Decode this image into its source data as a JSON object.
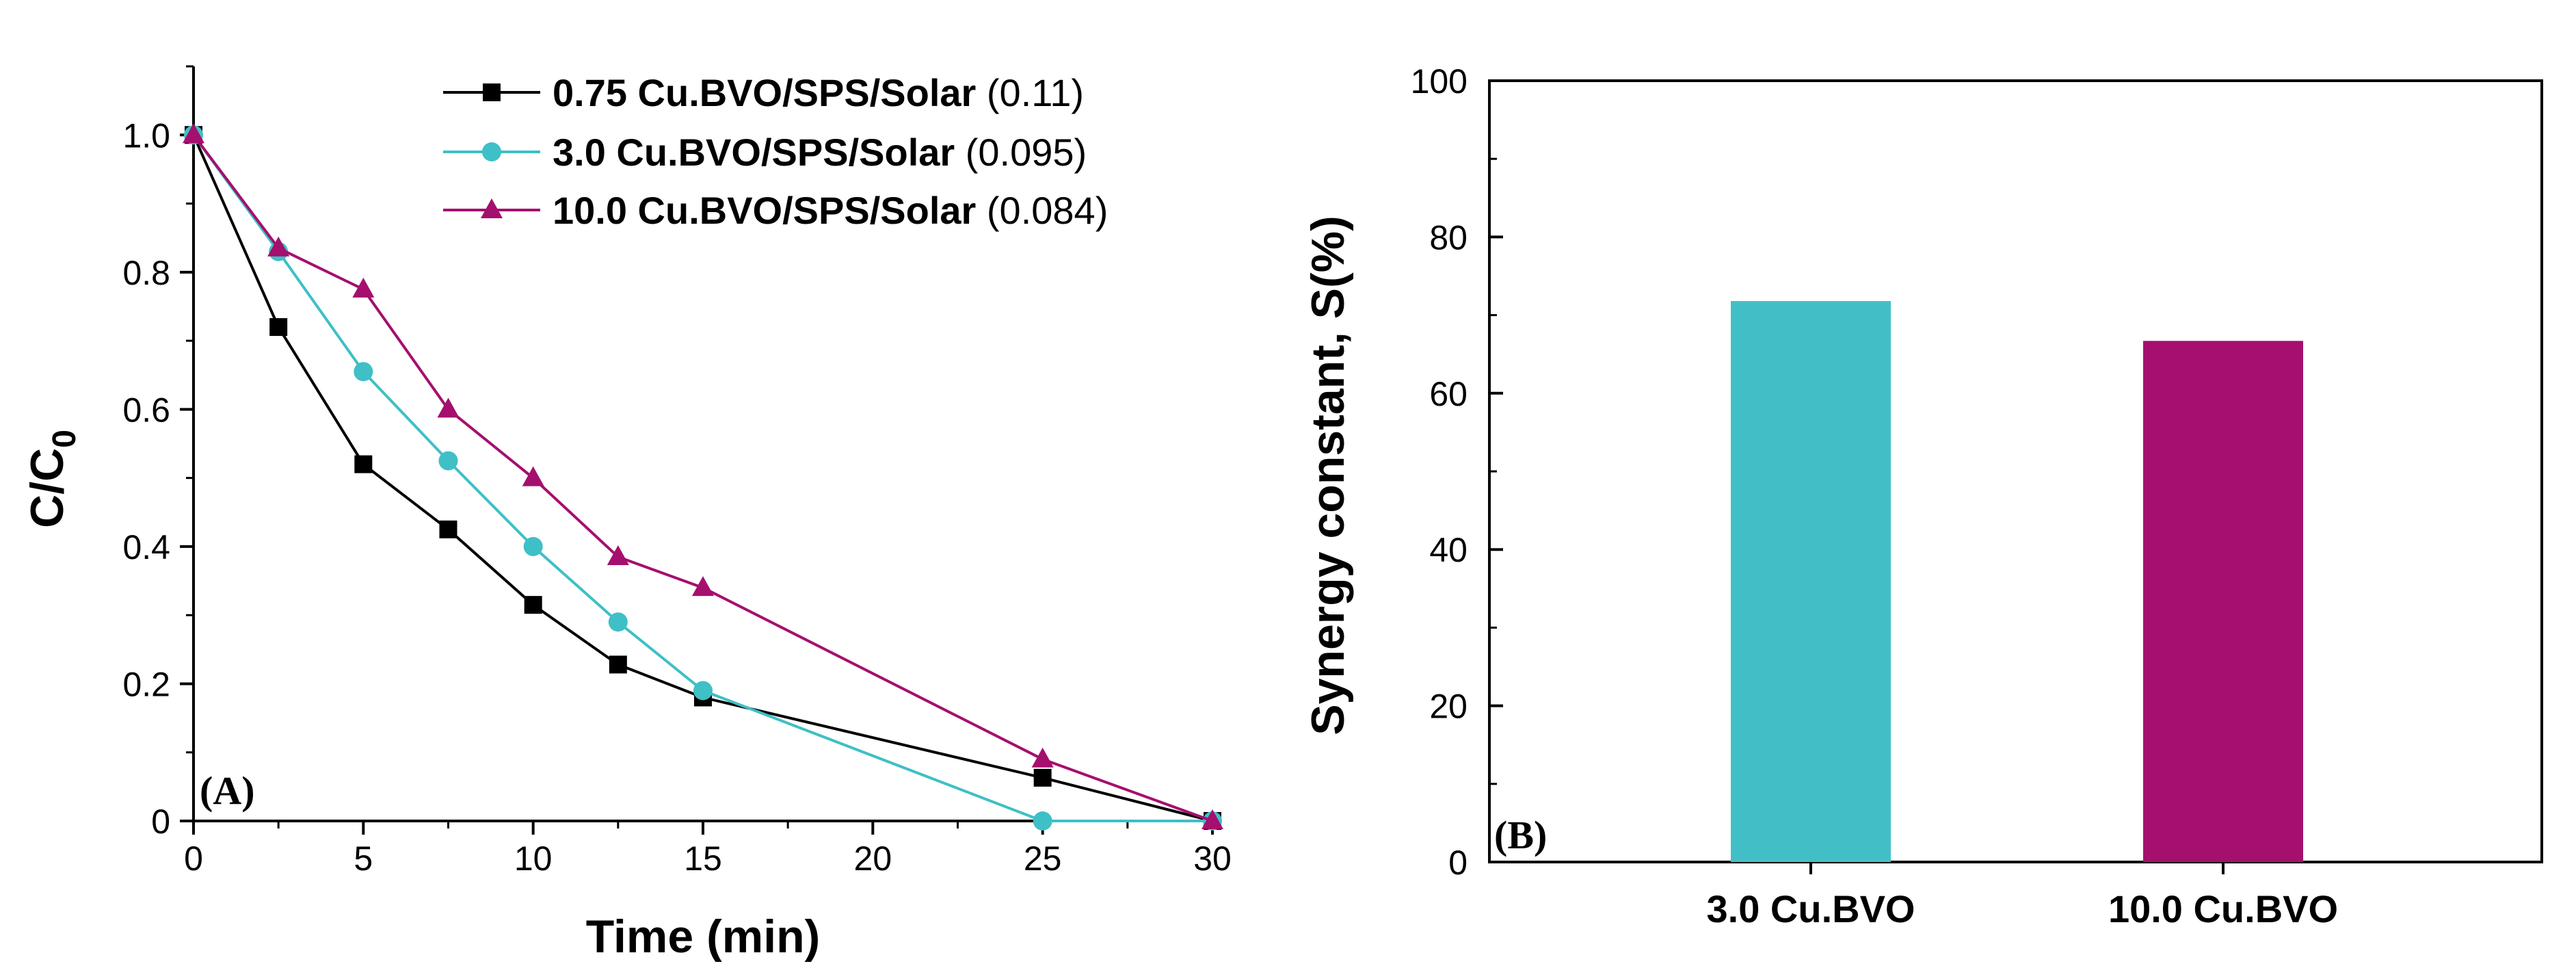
{
  "chart_data": [
    {
      "type": "line",
      "panel_label": "(A)",
      "xlabel": "Time (min)",
      "ylabel": {
        "main": "C/C",
        "subscript": "0"
      },
      "xlim": [
        0,
        30
      ],
      "ylim": [
        0,
        1.1
      ],
      "x_ticks": [
        "0",
        "5",
        "10",
        "15",
        "20",
        "25",
        "30"
      ],
      "y_ticks": [
        "0",
        "0.2",
        "0.4",
        "0.6",
        "0.8",
        "1.0"
      ],
      "grid": false,
      "legend_position": "top-right",
      "series": [
        {
          "name": "0.75 Cu.BVO/SPS/Solar",
          "rate_constant": "(0.11)",
          "marker": "square",
          "color": "#000000",
          "x": [
            0,
            2.5,
            5,
            7.5,
            10,
            12.5,
            15,
            25,
            30
          ],
          "y": [
            1.0,
            0.72,
            0.52,
            0.425,
            0.315,
            0.228,
            0.18,
            0.063,
            0.0
          ]
        },
        {
          "name": "3.0 Cu.BVO/SPS/Solar",
          "rate_constant": "(0.095)",
          "marker": "circle",
          "color": "#3fbfc6",
          "x": [
            0,
            2.5,
            5,
            7.5,
            10,
            12.5,
            15,
            25,
            30
          ],
          "y": [
            1.0,
            0.83,
            0.655,
            0.525,
            0.4,
            0.29,
            0.19,
            0.0,
            0.0
          ]
        },
        {
          "name": "10.0 Cu.BVO/SPS/Solar",
          "rate_constant": "(0.084)",
          "marker": "triangle",
          "color": "#a50f6e",
          "x": [
            0,
            2.5,
            5,
            7.5,
            10,
            12.5,
            15,
            25,
            30
          ],
          "y": [
            1.0,
            0.835,
            0.775,
            0.6,
            0.5,
            0.385,
            0.34,
            0.09,
            0.0
          ]
        }
      ]
    },
    {
      "type": "bar",
      "panel_label": "(B)",
      "xlabel": "",
      "ylabel": "Synergy constant, S(%)",
      "categories": [
        "3.0 Cu.BVO",
        "10.0 Cu.BVO"
      ],
      "values": [
        71.8,
        66.7
      ],
      "colors": [
        "#42bfc6",
        "#a50f6e"
      ],
      "ylim": [
        0,
        100
      ],
      "y_ticks": [
        "0",
        "20",
        "40",
        "60",
        "80",
        "100"
      ],
      "grid": false
    }
  ]
}
